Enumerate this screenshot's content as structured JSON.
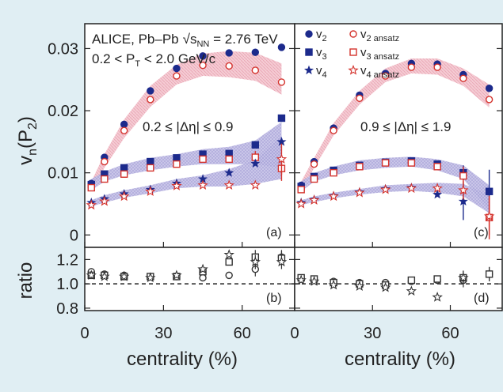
{
  "chart_data": [
    {
      "type": "scatter",
      "panel_label": "(a)",
      "collaboration": "ALICE, Pb–Pb",
      "energy_label": "√s",
      "energy_sub": "NN",
      "energy_value": " = 2.76 TeV",
      "pt_text_a": "0.2 < P",
      "pt_sub": "T",
      "pt_text_b": " < 2.0 GeV/c",
      "eta_cut": "0.2 ≤ |Δη| ≤ 0.9",
      "ylabel_main": "v",
      "ylabel_sub": "n",
      "ylabel_paren": "(P",
      "ylabel_psub": "2",
      "ylabel_close": ")",
      "ylim": [
        -0.002,
        0.034
      ],
      "yticks": [
        "0",
        "0.01",
        "0.02",
        "0.03"
      ],
      "xlim": [
        0,
        80
      ],
      "series": [
        {
          "name": "v2",
          "marker": "circle",
          "color": "#1c2a8c",
          "x": [
            2.5,
            7.5,
            15,
            25,
            35,
            45,
            55,
            65,
            75
          ],
          "y": [
            0.0083,
            0.0125,
            0.0178,
            0.0232,
            0.0268,
            0.0288,
            0.0293,
            0.0294,
            0.0302
          ]
        },
        {
          "name": "v2 ansatz",
          "marker": "open-circle",
          "color": "#d4322c",
          "x": [
            2.5,
            7.5,
            15,
            25,
            35,
            45,
            55,
            65,
            75
          ],
          "y": [
            0.0078,
            0.0118,
            0.0168,
            0.0218,
            0.0256,
            0.0273,
            0.0272,
            0.0265,
            0.0246
          ],
          "band_lo": [
            0.0071,
            0.0108,
            0.0156,
            0.0206,
            0.0242,
            0.0256,
            0.0254,
            0.0248,
            0.0226
          ],
          "band_hi": [
            0.0086,
            0.013,
            0.0186,
            0.024,
            0.0274,
            0.0292,
            0.0296,
            0.0293,
            0.0276
          ]
        },
        {
          "name": "v3",
          "marker": "square",
          "color": "#1c2a8c",
          "x": [
            2.5,
            7.5,
            15,
            25,
            35,
            45,
            55,
            65,
            75
          ],
          "y": [
            0.0081,
            0.0098,
            0.0108,
            0.0118,
            0.0124,
            0.013,
            0.0131,
            0.0145,
            0.0188
          ]
        },
        {
          "name": "v3 ansatz",
          "marker": "open-square",
          "color": "#d4322c",
          "x": [
            2.5,
            7.5,
            15,
            25,
            35,
            45,
            55,
            65,
            75
          ],
          "y": [
            0.0076,
            0.009,
            0.0098,
            0.0108,
            0.0114,
            0.0122,
            0.0122,
            0.0125,
            0.0107
          ],
          "err": [
            0.0004,
            0.0004,
            0.0004,
            0.0004,
            0.0004,
            0.0005,
            0.0006,
            0.001,
            0.002
          ],
          "band_lo": [
            0.0072,
            0.0086,
            0.0096,
            0.0104,
            0.011,
            0.0114,
            0.0114,
            0.0114,
            0.0108
          ],
          "band_hi": [
            0.009,
            0.0102,
            0.0114,
            0.0124,
            0.013,
            0.0138,
            0.0142,
            0.0152,
            0.0182
          ]
        },
        {
          "name": "v4",
          "marker": "star",
          "color": "#1c2a8c",
          "x": [
            2.5,
            7.5,
            15,
            25,
            35,
            45,
            55,
            65,
            75
          ],
          "y": [
            0.0052,
            0.0058,
            0.0066,
            0.0073,
            0.0083,
            0.009,
            0.01,
            0.0115,
            0.015
          ]
        },
        {
          "name": "v4 ansatz",
          "marker": "open-star",
          "color": "#d4322c",
          "x": [
            2.5,
            7.5,
            15,
            25,
            35,
            45,
            55,
            65,
            75
          ],
          "y": [
            0.0048,
            0.0054,
            0.0062,
            0.007,
            0.0079,
            0.008,
            0.008,
            0.008,
            0.0122
          ],
          "err": [
            0.0002,
            0.0002,
            0.0002,
            0.0002,
            0.0003,
            0.0003,
            0.0004,
            0.0007,
            0.0025
          ],
          "band_lo": [
            0.0046,
            0.0052,
            0.006,
            0.0067,
            0.0075,
            0.0078,
            0.0078,
            0.0082,
            0.009
          ],
          "band_hi": [
            0.0056,
            0.0064,
            0.0072,
            0.008,
            0.009,
            0.0096,
            0.0106,
            0.012,
            0.016
          ]
        }
      ]
    },
    {
      "type": "scatter",
      "panel_label": "(c)",
      "eta_cut": "0.9 ≤ |Δη| ≤ 1.9",
      "ylim": [
        -0.002,
        0.034
      ],
      "xlim": [
        0,
        80
      ],
      "legend": [
        {
          "key": "v",
          "sub": "2",
          "marker": "circle"
        },
        {
          "key": "v",
          "sub": "3",
          "marker": "square"
        },
        {
          "key": "v",
          "sub": "4",
          "marker": "star"
        },
        {
          "key": "v",
          "sub": "2 ansatz",
          "marker": "open-circle"
        },
        {
          "key": "v",
          "sub": "3 ansatz",
          "marker": "open-square"
        },
        {
          "key": "v",
          "sub": "4 ansatz",
          "marker": "open-star"
        }
      ],
      "series": [
        {
          "name": "v2",
          "marker": "circle",
          "color": "#1c2a8c",
          "x": [
            2.5,
            7.5,
            15,
            25,
            35,
            45,
            55,
            65,
            75
          ],
          "y": [
            0.008,
            0.0118,
            0.0172,
            0.0225,
            0.026,
            0.0276,
            0.0275,
            0.0258,
            0.0236
          ]
        },
        {
          "name": "v2 ansatz",
          "marker": "open-circle",
          "color": "#d4322c",
          "x": [
            2.5,
            7.5,
            15,
            25,
            35,
            45,
            55,
            65,
            75
          ],
          "y": [
            0.0076,
            0.0114,
            0.0168,
            0.022,
            0.0256,
            0.027,
            0.027,
            0.0252,
            0.0218
          ],
          "band_lo": [
            0.007,
            0.0108,
            0.016,
            0.021,
            0.0246,
            0.026,
            0.0258,
            0.024,
            0.0205
          ],
          "band_hi": [
            0.0086,
            0.0124,
            0.018,
            0.0232,
            0.0268,
            0.0284,
            0.0284,
            0.0268,
            0.0242
          ]
        },
        {
          "name": "v3",
          "marker": "square",
          "color": "#1c2a8c",
          "x": [
            2.5,
            7.5,
            15,
            25,
            35,
            45,
            55,
            65,
            75
          ],
          "y": [
            0.0078,
            0.0094,
            0.0104,
            0.0112,
            0.0117,
            0.0119,
            0.0114,
            0.01,
            0.007
          ],
          "err": [
            0.0004,
            0.0004,
            0.0004,
            0.0004,
            0.0005,
            0.0005,
            0.0006,
            0.0012,
            0.0035
          ]
        },
        {
          "name": "v3 ansatz",
          "marker": "open-square",
          "color": "#d4322c",
          "x": [
            2.5,
            7.5,
            15,
            25,
            35,
            45,
            55,
            65,
            75
          ],
          "y": [
            0.0073,
            0.009,
            0.01,
            0.011,
            0.0116,
            0.0116,
            0.011,
            0.0095,
            0.0028
          ],
          "err": [
            0.0003,
            0.0003,
            0.0003,
            0.0003,
            0.0004,
            0.0004,
            0.0006,
            0.0015,
            0.0035
          ],
          "band_lo": [
            0.007,
            0.0086,
            0.0096,
            0.0104,
            0.0108,
            0.011,
            0.0104,
            0.009,
            0.004
          ],
          "band_hi": [
            0.0086,
            0.01,
            0.011,
            0.012,
            0.0124,
            0.0126,
            0.0122,
            0.0112,
            0.008
          ]
        },
        {
          "name": "v4",
          "marker": "star",
          "color": "#1c2a8c",
          "x": [
            2.5,
            7.5,
            15,
            25,
            35,
            45,
            55,
            65
          ],
          "y": [
            0.0052,
            0.0057,
            0.0063,
            0.0069,
            0.0074,
            0.0076,
            0.0065,
            0.0054
          ],
          "err": [
            0.0002,
            0.0002,
            0.0002,
            0.0003,
            0.0003,
            0.0004,
            0.0008,
            0.003
          ]
        },
        {
          "name": "v4 ansatz",
          "marker": "open-star",
          "color": "#d4322c",
          "x": [
            2.5,
            7.5,
            15,
            25,
            35,
            45,
            55,
            65,
            75
          ],
          "y": [
            0.005,
            0.0056,
            0.0062,
            0.0068,
            0.0073,
            0.0075,
            0.0075,
            0.0072,
            0.003
          ],
          "err": [
            0.0002,
            0.0002,
            0.0002,
            0.0003,
            0.0003,
            0.0004,
            0.0006,
            0.0015,
            0.003
          ],
          "band_lo": [
            0.0048,
            0.0053,
            0.0059,
            0.0065,
            0.0069,
            0.0071,
            0.0068,
            0.0062,
            0.0035
          ],
          "band_hi": [
            0.0056,
            0.0062,
            0.0068,
            0.0074,
            0.008,
            0.0082,
            0.0084,
            0.0082,
            0.0065
          ]
        }
      ]
    },
    {
      "type": "scatter",
      "panel_label": "(b)",
      "ylabel": "ratio",
      "xlabel": "centrality (%)",
      "ylim": [
        0.78,
        1.3
      ],
      "yticks": [
        "0.8",
        "1.0",
        "1.2"
      ],
      "xlim": [
        0,
        80
      ],
      "xticks": [
        "0",
        "30",
        "60"
      ],
      "reference_line": 1.0,
      "series": [
        {
          "name": "v2 ratio",
          "marker": "open-circle",
          "x": [
            2.5,
            7.5,
            15,
            25,
            35,
            45,
            55,
            65,
            75
          ],
          "y": [
            1.1,
            1.08,
            1.07,
            1.06,
            1.06,
            1.05,
            1.07,
            1.12,
            1.22
          ]
        },
        {
          "name": "v3 ratio",
          "marker": "open-square",
          "x": [
            2.5,
            7.5,
            15,
            25,
            35,
            45,
            55,
            65,
            75
          ],
          "y": [
            1.07,
            1.07,
            1.06,
            1.06,
            1.06,
            1.1,
            1.18,
            1.22,
            1.21
          ]
        },
        {
          "name": "v4 ratio",
          "marker": "open-star",
          "x": [
            2.5,
            7.5,
            15,
            25,
            35,
            45,
            55,
            65,
            75
          ],
          "y": [
            1.07,
            1.06,
            1.06,
            1.05,
            1.07,
            1.12,
            1.24,
            1.18,
            1.18
          ]
        }
      ]
    },
    {
      "type": "scatter",
      "panel_label": "(d)",
      "xlabel": "centrality (%)",
      "ylim": [
        0.78,
        1.3
      ],
      "xlim": [
        0,
        80
      ],
      "xticks": [
        "0",
        "30",
        "60"
      ],
      "reference_line": 1.0,
      "series": [
        {
          "name": "v2 ratio",
          "marker": "open-circle",
          "x": [
            2.5,
            7.5,
            15,
            25,
            35,
            45,
            55,
            65,
            75
          ],
          "y": [
            1.04,
            1.03,
            1.02,
            1.01,
            1.01,
            1.02,
            1.03,
            1.03,
            1.08
          ]
        },
        {
          "name": "v3 ratio",
          "marker": "open-square",
          "x": [
            2.5,
            7.5,
            15,
            25,
            35,
            45,
            55,
            65,
            75
          ],
          "y": [
            1.05,
            1.04,
            1.01,
            1.0,
            0.99,
            1.03,
            1.04,
            1.05,
            1.08
          ]
        },
        {
          "name": "v4 ratio",
          "marker": "open-star",
          "x": [
            2.5,
            7.5,
            15,
            25,
            35,
            45,
            55,
            65
          ],
          "y": [
            1.03,
            1.02,
            0.99,
            0.98,
            0.97,
            0.94,
            0.89,
            1.05
          ]
        }
      ]
    }
  ]
}
